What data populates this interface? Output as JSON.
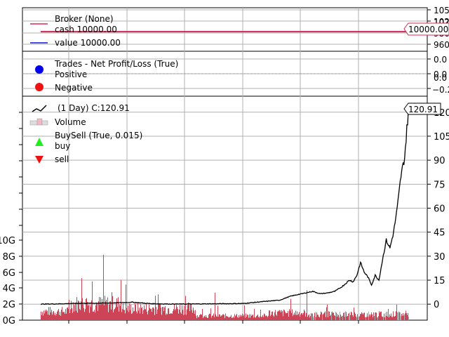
{
  "chart_data": [
    {
      "type": "line",
      "panel": "broker",
      "title": "Broker (None)",
      "legend_position": "top-left",
      "grid": true,
      "series": [
        {
          "name": "cash 10000.00",
          "color": "#d62b54",
          "values": [
            10000,
            10000
          ]
        },
        {
          "name": "value 10000.00",
          "color": "#1010e0",
          "values": [
            10000,
            10000
          ]
        }
      ],
      "y_ticks": [
        "105",
        "102",
        "100",
        "980",
        "960"
      ],
      "ylim": [
        9550,
        10550
      ],
      "last_value_label": "10000.00"
    },
    {
      "type": "scatter",
      "panel": "trades",
      "title": "Trades - Net Profit/Loss (True)",
      "legend_position": "top-left",
      "grid": true,
      "series": [
        {
          "name": "Positive",
          "color": "#0000ee"
        },
        {
          "name": "Negative",
          "color": "#ee1111"
        }
      ],
      "y_ticks": [
        "0.0",
        "0.0",
        "0.0",
        "−0.2"
      ],
      "ylim": [
        -0.3,
        0.06
      ]
    },
    {
      "type": "line",
      "panel": "price",
      "legend_position": "top-left",
      "grid": true,
      "x_ticks": [
        "",
        "",
        "",
        "",
        "",
        "",
        ""
      ],
      "ylim": [
        -10,
        130
      ],
      "y_ticks_right": [
        "0",
        "15",
        "30",
        "45",
        "60",
        "75",
        "90",
        "105",
        "120"
      ],
      "y_ticks_right_values": [
        0,
        15,
        30,
        45,
        60,
        75,
        90,
        105,
        120
      ],
      "volume_ticks_left": [
        "0G",
        "2G",
        "4G",
        "6G",
        "8G",
        "10G"
      ],
      "volume_ticks_values": [
        0,
        2,
        4,
        6,
        8,
        10
      ],
      "volume_ylim": [
        0,
        49
      ],
      "last_value_label": "120.91",
      "legend": {
        "price": "(1 Day) C:120.91",
        "volume": "Volume",
        "buysell_title": "BuySell (True, 0.015)",
        "buy": "buy",
        "sell": "sell"
      },
      "price_series": {
        "name": "(1 Day) C:120.91",
        "color": "#000000",
        "x": [
          0,
          0.05,
          0.1,
          0.15,
          0.2,
          0.25,
          0.3,
          0.35,
          0.4,
          0.45,
          0.5,
          0.55,
          0.6,
          0.65,
          0.68,
          0.7,
          0.72,
          0.74,
          0.76,
          0.78,
          0.8,
          0.82,
          0.84,
          0.85,
          0.86,
          0.87,
          0.88,
          0.89,
          0.9,
          0.91,
          0.92,
          0.93,
          0.94,
          0.95,
          0.96,
          0.97,
          0.98,
          0.99,
          1.0
        ],
        "values": [
          0,
          0.2,
          0.5,
          0.6,
          0.8,
          1.2,
          0.3,
          0.1,
          0.1,
          0.2,
          0.3,
          0.4,
          1.5,
          2.5,
          5,
          6,
          7,
          8,
          6.5,
          7,
          8,
          11,
          15,
          14,
          18,
          26,
          20,
          17,
          12,
          18,
          15,
          28,
          40,
          35,
          45,
          60,
          80,
          92,
          120.91
        ]
      },
      "volume_series": {
        "name": "Volume",
        "color": "#cc4455",
        "segments": [
          {
            "from": 0,
            "to": 0.08,
            "level": 1.2
          },
          {
            "from": 0.08,
            "to": 0.22,
            "level": 2.2
          },
          {
            "from": 0.22,
            "to": 0.42,
            "level": 1.6
          },
          {
            "from": 0.42,
            "to": 0.62,
            "level": 0.6
          },
          {
            "from": 0.62,
            "to": 0.72,
            "level": 1.0
          },
          {
            "from": 0.72,
            "to": 1.0,
            "level": 0.8
          }
        ]
      }
    }
  ]
}
